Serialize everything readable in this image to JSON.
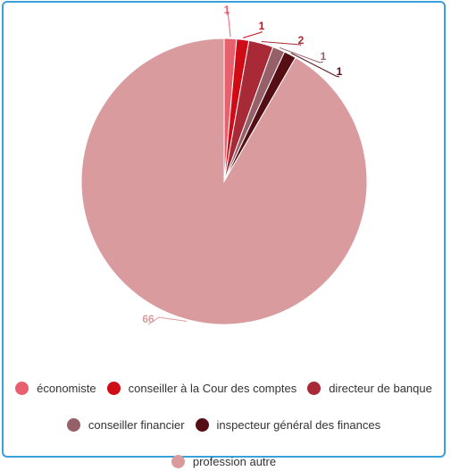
{
  "chart_data": {
    "type": "pie",
    "categories": [
      "économiste",
      "conseiller à la Cour des comptes",
      "directeur de banque",
      "conseiller financier",
      "inspecteur général des finances",
      "profession autre"
    ],
    "values": [
      1,
      1,
      2,
      1,
      1,
      66
    ],
    "colors": [
      "#e8606e",
      "#cf0c16",
      "#a82a36",
      "#956068",
      "#560e15",
      "#d99b9d"
    ],
    "title": "",
    "legend_position": "bottom"
  }
}
